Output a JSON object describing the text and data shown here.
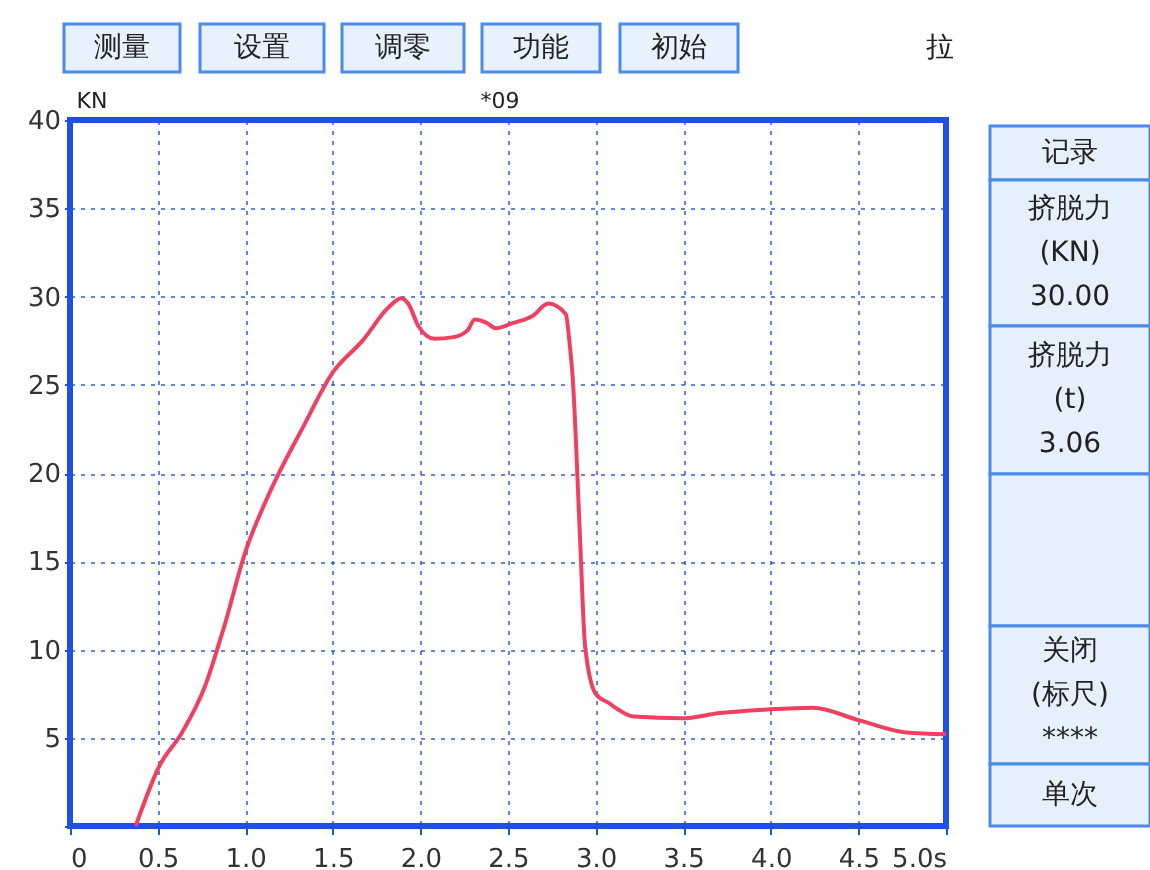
{
  "chart_data": {
    "type": "line",
    "ylabel": "KN",
    "annotations": [
      "测量",
      "设置",
      "调零",
      "功能",
      "初始",
      "拉",
      "*09",
      "记录",
      "挤脱力\n(KN)\n30.00",
      "挤脱力\n(t)\n3.06",
      "关闭\n(标尺)\n****",
      "单次"
    ],
    "xlim": [
      0,
      5
    ],
    "ylim": [
      0,
      40
    ],
    "xticks": [
      0,
      {
        "value": 0.5,
        "label": "0.5"
      },
      {
        "value": 1,
        "label": "1.0"
      },
      {
        "value": 1.5,
        "label": "1.5"
      },
      {
        "value": 2,
        "label": "2.0"
      },
      {
        "value": 2.5,
        "label": "2.5"
      },
      {
        "value": 3,
        "label": "3.0"
      },
      {
        "value": 3.5,
        "label": "3.5"
      },
      {
        "value": 4,
        "label": "4.0"
      },
      {
        "value": 4.5,
        "label": "4.5"
      },
      {
        "value": 5,
        "label": "5.0s"
      }
    ],
    "yticks": [
      {
        "value": 0,
        "label": null
      },
      5,
      10,
      15,
      20,
      25,
      30,
      35,
      40
    ],
    "grid": true,
    "marker": "none",
    "line_style": "solid",
    "series": [
      {
        "color": "#f04060",
        "x": [
          0.375,
          0.51,
          0.64,
          0.77,
          0.88,
          1.0,
          1.14,
          1.33,
          1.5,
          1.67,
          1.82,
          1.89,
          1.93,
          1.99,
          2.08,
          2.19,
          2.27,
          2.31,
          2.38,
          2.43,
          2.53,
          2.64,
          2.73,
          2.83,
          2.85,
          2.87,
          2.91,
          2.94,
          3.0,
          3.07,
          3.22,
          3.49,
          3.71,
          3.98,
          4.24,
          4.5,
          4.77,
          5.0
        ],
        "values": [
          0,
          3.4,
          5.3,
          7.9,
          11.3,
          15.5,
          18.9,
          22.6,
          25.7,
          27.5,
          29.4,
          29.9,
          29.6,
          28.3,
          27.6,
          27.7,
          28.1,
          28.7,
          28.5,
          28.2,
          28.5,
          28.9,
          29.6,
          29.0,
          27.5,
          25.3,
          16.6,
          10.2,
          7.5,
          7.0,
          6.2,
          6.1,
          6.4,
          6.6,
          6.7,
          6.0,
          5.3,
          5.2
        ]
      }
    ]
  }
}
